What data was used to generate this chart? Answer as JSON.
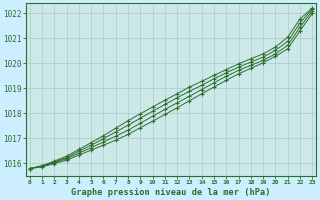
{
  "title": "Graphe pression niveau de la mer (hPa)",
  "background_color": "#cceeff",
  "plot_bg_color": "#cce8e8",
  "grid_color": "#aacccc",
  "line_color": "#2d6e2d",
  "x_ticks": [
    0,
    1,
    2,
    3,
    4,
    5,
    6,
    7,
    8,
    9,
    10,
    11,
    12,
    13,
    14,
    15,
    16,
    17,
    18,
    19,
    20,
    21,
    22,
    23
  ],
  "y_ticks": [
    1016,
    1017,
    1018,
    1019,
    1020,
    1021,
    1022
  ],
  "ylim": [
    1015.5,
    1022.4
  ],
  "xlim": [
    -0.3,
    23.3
  ],
  "series": [
    [
      1015.78,
      1015.85,
      1015.98,
      1016.12,
      1016.32,
      1016.52,
      1016.72,
      1016.92,
      1017.15,
      1017.42,
      1017.68,
      1017.95,
      1018.22,
      1018.5,
      1018.78,
      1019.05,
      1019.32,
      1019.58,
      1019.8,
      1020.02,
      1020.28,
      1020.58,
      1021.3,
      1022.0
    ],
    [
      1015.78,
      1015.88,
      1016.02,
      1016.18,
      1016.4,
      1016.62,
      1016.85,
      1017.08,
      1017.32,
      1017.6,
      1017.88,
      1018.15,
      1018.42,
      1018.68,
      1018.95,
      1019.22,
      1019.48,
      1019.72,
      1019.92,
      1020.12,
      1020.38,
      1020.72,
      1021.45,
      1022.1
    ],
    [
      1015.78,
      1015.88,
      1016.05,
      1016.22,
      1016.48,
      1016.72,
      1016.98,
      1017.25,
      1017.52,
      1017.8,
      1018.08,
      1018.35,
      1018.62,
      1018.88,
      1019.12,
      1019.38,
      1019.62,
      1019.85,
      1020.05,
      1020.25,
      1020.52,
      1020.88,
      1021.62,
      1022.18
    ],
    [
      1015.78,
      1015.9,
      1016.08,
      1016.28,
      1016.55,
      1016.82,
      1017.1,
      1017.4,
      1017.7,
      1017.98,
      1018.25,
      1018.52,
      1018.78,
      1019.05,
      1019.28,
      1019.52,
      1019.75,
      1019.98,
      1020.18,
      1020.38,
      1020.65,
      1021.05,
      1021.78,
      1022.22
    ]
  ]
}
